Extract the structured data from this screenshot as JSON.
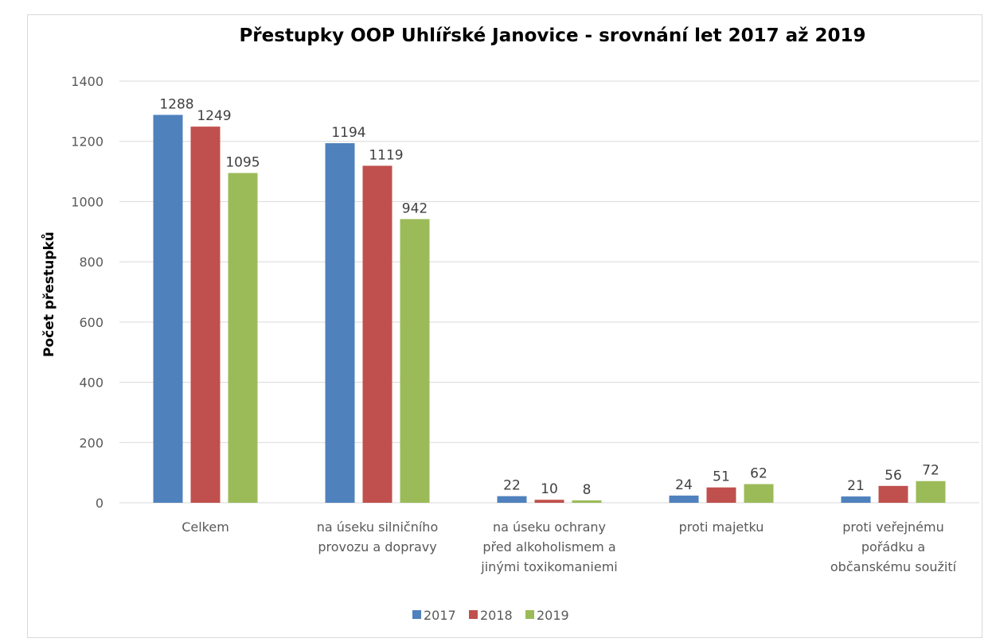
{
  "chart_data": {
    "type": "bar",
    "title": "Přestupky OOP Uhlířské Janovice - srovnání let 2017 až 2019",
    "xlabel": "",
    "ylabel": "Počet přestupků",
    "ylim": [
      0,
      1400
    ],
    "yticks": [
      0,
      200,
      400,
      600,
      800,
      1000,
      1200,
      1400
    ],
    "grid": true,
    "legend_position": "bottom",
    "categories": [
      [
        "Celkem"
      ],
      [
        "na úseku silničního",
        "provozu a dopravy"
      ],
      [
        "na úseku ochrany",
        "před alkoholismem a",
        "jinými toxikomaniemi"
      ],
      [
        "proti majetku"
      ],
      [
        "proti veřejnému",
        "pořádku a",
        "občanskému soužití"
      ]
    ],
    "series": [
      {
        "name": "2017",
        "color": "#4f81bd",
        "values": [
          1288,
          1194,
          22,
          24,
          21
        ]
      },
      {
        "name": "2018",
        "color": "#c0504d",
        "values": [
          1249,
          1119,
          10,
          51,
          56
        ]
      },
      {
        "name": "2019",
        "color": "#9bbb59",
        "values": [
          1095,
          942,
          8,
          62,
          72
        ]
      }
    ]
  }
}
